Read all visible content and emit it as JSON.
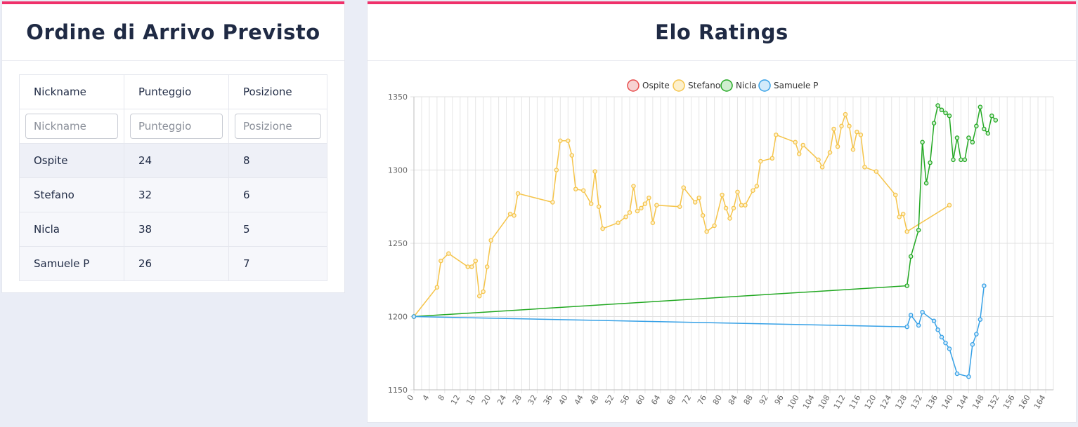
{
  "left_panel": {
    "title": "Ordine di Arrivo Previsto",
    "columns": [
      "Nickname",
      "Punteggio",
      "Posizione"
    ],
    "filters": [
      {
        "placeholder": "Nickname"
      },
      {
        "placeholder": "Punteggio"
      },
      {
        "placeholder": "Posizione"
      }
    ],
    "rows": [
      {
        "nickname": "Ospite",
        "score": "24",
        "position": "8"
      },
      {
        "nickname": "Stefano",
        "score": "32",
        "position": "6"
      },
      {
        "nickname": "Nicla",
        "score": "38",
        "position": "5"
      },
      {
        "nickname": "Samuele P",
        "score": "26",
        "position": "7"
      }
    ]
  },
  "right_panel": {
    "title": "Elo Ratings"
  },
  "chart_data": {
    "type": "line",
    "title": "",
    "xlabel": "",
    "ylabel": "",
    "xlim": [
      0,
      166
    ],
    "ylim": [
      1150,
      1350
    ],
    "x_ticks": [
      0,
      4,
      8,
      12,
      16,
      20,
      24,
      28,
      32,
      36,
      40,
      44,
      48,
      52,
      56,
      60,
      64,
      68,
      72,
      76,
      80,
      84,
      88,
      92,
      96,
      100,
      104,
      108,
      112,
      116,
      120,
      124,
      128,
      132,
      136,
      140,
      144,
      148,
      152,
      156,
      160,
      164
    ],
    "y_ticks": [
      1150,
      1200,
      1250,
      1300,
      1350
    ],
    "grid": true,
    "legend_position": "top",
    "series": [
      {
        "name": "Ospite",
        "color": "#e74c4c",
        "fill": "#f7d2d2",
        "points": [
          [
            0,
            1200
          ]
        ]
      },
      {
        "name": "Stefano",
        "color": "#f5c44a",
        "fill": "#fdf0cc",
        "points": [
          [
            0,
            1200
          ],
          [
            6,
            1220
          ],
          [
            7,
            1238
          ],
          [
            9,
            1243
          ],
          [
            14,
            1234
          ],
          [
            15,
            1234
          ],
          [
            16,
            1238
          ],
          [
            17,
            1214
          ],
          [
            18,
            1217
          ],
          [
            19,
            1234
          ],
          [
            20,
            1252
          ],
          [
            25,
            1270
          ],
          [
            26,
            1269
          ],
          [
            27,
            1284
          ],
          [
            36,
            1278
          ],
          [
            37,
            1300
          ],
          [
            38,
            1320
          ],
          [
            40,
            1320
          ],
          [
            41,
            1310
          ],
          [
            42,
            1287
          ],
          [
            44,
            1286
          ],
          [
            46,
            1277
          ],
          [
            47,
            1299
          ],
          [
            48,
            1275
          ],
          [
            49,
            1260
          ],
          [
            53,
            1264
          ],
          [
            55,
            1268
          ],
          [
            56,
            1271
          ],
          [
            57,
            1289
          ],
          [
            58,
            1272
          ],
          [
            59,
            1274
          ],
          [
            60,
            1277
          ],
          [
            61,
            1281
          ],
          [
            62,
            1264
          ],
          [
            63,
            1276
          ],
          [
            69,
            1275
          ],
          [
            70,
            1288
          ],
          [
            73,
            1278
          ],
          [
            74,
            1281
          ],
          [
            75,
            1269
          ],
          [
            76,
            1258
          ],
          [
            78,
            1262
          ],
          [
            80,
            1283
          ],
          [
            81,
            1274
          ],
          [
            82,
            1267
          ],
          [
            83,
            1274
          ],
          [
            84,
            1285
          ],
          [
            85,
            1276
          ],
          [
            86,
            1276
          ],
          [
            88,
            1286
          ],
          [
            89,
            1289
          ],
          [
            90,
            1306
          ],
          [
            93,
            1308
          ],
          [
            94,
            1324
          ],
          [
            99,
            1319
          ],
          [
            100,
            1311
          ],
          [
            101,
            1317
          ],
          [
            105,
            1307
          ],
          [
            106,
            1302
          ],
          [
            108,
            1312
          ],
          [
            109,
            1328
          ],
          [
            110,
            1316
          ],
          [
            111,
            1330
          ],
          [
            112,
            1338
          ],
          [
            113,
            1330
          ],
          [
            114,
            1314
          ],
          [
            115,
            1326
          ],
          [
            116,
            1324
          ],
          [
            117,
            1302
          ],
          [
            120,
            1299
          ],
          [
            125,
            1283
          ],
          [
            126,
            1268
          ],
          [
            127,
            1270
          ],
          [
            128,
            1258
          ],
          [
            139,
            1276
          ]
        ]
      },
      {
        "name": "Nicla",
        "color": "#22a822",
        "fill": "#cfeecf",
        "points": [
          [
            0,
            1200
          ],
          [
            128,
            1221
          ],
          [
            129,
            1241
          ],
          [
            131,
            1259
          ],
          [
            132,
            1319
          ],
          [
            133,
            1291
          ],
          [
            134,
            1305
          ],
          [
            135,
            1332
          ],
          [
            136,
            1344
          ],
          [
            137,
            1341
          ],
          [
            138,
            1339
          ],
          [
            139,
            1337
          ],
          [
            140,
            1307
          ],
          [
            141,
            1322
          ],
          [
            142,
            1307
          ],
          [
            143,
            1307
          ],
          [
            144,
            1322
          ],
          [
            145,
            1319
          ],
          [
            146,
            1330
          ],
          [
            147,
            1343
          ],
          [
            148,
            1328
          ],
          [
            149,
            1325
          ],
          [
            150,
            1337
          ],
          [
            151,
            1334
          ]
        ]
      },
      {
        "name": "Samuele P",
        "color": "#35a0e6",
        "fill": "#d2eafa",
        "points": [
          [
            0,
            1200
          ],
          [
            128,
            1193
          ],
          [
            129,
            1201
          ],
          [
            131,
            1194
          ],
          [
            132,
            1203
          ],
          [
            135,
            1197
          ],
          [
            136,
            1191
          ],
          [
            137,
            1186
          ],
          [
            138,
            1182
          ],
          [
            139,
            1178
          ],
          [
            141,
            1161
          ],
          [
            144,
            1159
          ],
          [
            145,
            1181
          ],
          [
            146,
            1188
          ],
          [
            147,
            1198
          ],
          [
            148,
            1221
          ]
        ]
      }
    ]
  }
}
